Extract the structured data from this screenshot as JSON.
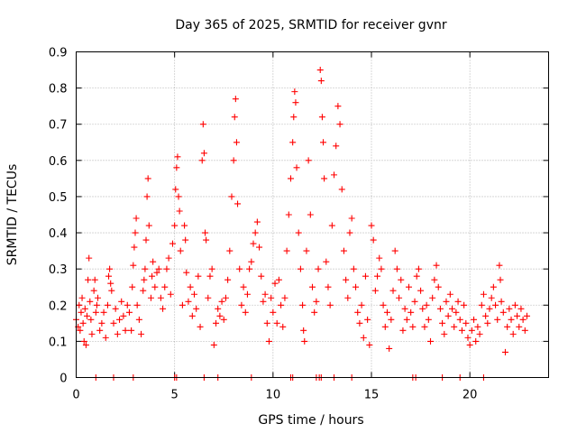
{
  "chart_data": {
    "type": "scatter",
    "title": "Day 365 of 2025, SRMTID for receiver gvnr",
    "xlabel": "GPS time / hours",
    "ylabel": "SRMTID / TECUs",
    "xlim": [
      0,
      24
    ],
    "ylim": [
      0,
      0.9
    ],
    "x_ticks": [
      0,
      5,
      10,
      15,
      20
    ],
    "y_ticks": [
      0,
      0.1,
      0.2,
      0.3,
      0.4,
      0.5,
      0.6,
      0.7,
      0.8,
      0.9
    ],
    "x_tick_labels": [
      "0",
      "5",
      "10",
      "15",
      "20"
    ],
    "y_tick_labels": [
      "0",
      "0.1",
      "0.2",
      "0.3",
      "0.4",
      "0.5",
      "0.6",
      "0.7",
      "0.8",
      "0.9"
    ],
    "grid": true,
    "legend": "none",
    "marker": "+",
    "series": [
      {
        "name": "SRMTID",
        "color": "#ff0000",
        "points": [
          [
            0.0,
            0.16
          ],
          [
            0.1,
            0.14
          ],
          [
            0.15,
            0.2
          ],
          [
            0.2,
            0.13
          ],
          [
            0.25,
            0.18
          ],
          [
            0.3,
            0.22
          ],
          [
            0.35,
            0.15
          ],
          [
            0.4,
            0.1
          ],
          [
            0.45,
            0.19
          ],
          [
            0.5,
            0.09
          ],
          [
            0.55,
            0.17
          ],
          [
            0.6,
            0.27
          ],
          [
            0.65,
            0.33
          ],
          [
            0.7,
            0.21
          ],
          [
            0.75,
            0.16
          ],
          [
            0.8,
            0.12
          ],
          [
            0.9,
            0.24
          ],
          [
            0.95,
            0.27
          ],
          [
            1.0,
            0.18
          ],
          [
            1.05,
            0.2
          ],
          [
            1.1,
            0.22
          ],
          [
            1.2,
            0.13
          ],
          [
            1.3,
            0.15
          ],
          [
            1.4,
            0.18
          ],
          [
            1.5,
            0.11
          ],
          [
            1.6,
            0.2
          ],
          [
            1.65,
            0.28
          ],
          [
            1.7,
            0.3
          ],
          [
            1.75,
            0.26
          ],
          [
            1.8,
            0.24
          ],
          [
            1.9,
            0.15
          ],
          [
            2.0,
            0.19
          ],
          [
            2.1,
            0.12
          ],
          [
            2.2,
            0.16
          ],
          [
            2.3,
            0.21
          ],
          [
            2.4,
            0.17
          ],
          [
            2.5,
            0.13
          ],
          [
            2.6,
            0.2
          ],
          [
            2.7,
            0.18
          ],
          [
            2.8,
            0.13
          ],
          [
            2.85,
            0.25
          ],
          [
            2.9,
            0.31
          ],
          [
            2.95,
            0.36
          ],
          [
            3.0,
            0.4
          ],
          [
            3.05,
            0.44
          ],
          [
            3.1,
            0.2
          ],
          [
            3.2,
            0.16
          ],
          [
            3.3,
            0.12
          ],
          [
            3.4,
            0.24
          ],
          [
            3.45,
            0.27
          ],
          [
            3.5,
            0.3
          ],
          [
            3.55,
            0.38
          ],
          [
            3.6,
            0.5
          ],
          [
            3.65,
            0.55
          ],
          [
            3.7,
            0.42
          ],
          [
            3.8,
            0.22
          ],
          [
            3.85,
            0.28
          ],
          [
            3.9,
            0.32
          ],
          [
            4.0,
            0.25
          ],
          [
            4.1,
            0.29
          ],
          [
            4.2,
            0.3
          ],
          [
            4.3,
            0.22
          ],
          [
            4.4,
            0.19
          ],
          [
            4.5,
            0.25
          ],
          [
            4.6,
            0.3
          ],
          [
            4.7,
            0.33
          ],
          [
            4.8,
            0.23
          ],
          [
            4.9,
            0.37
          ],
          [
            5.0,
            0.42
          ],
          [
            5.05,
            0.52
          ],
          [
            5.1,
            0.58
          ],
          [
            5.15,
            0.61
          ],
          [
            5.2,
            0.5
          ],
          [
            5.25,
            0.46
          ],
          [
            5.3,
            0.35
          ],
          [
            5.4,
            0.2
          ],
          [
            5.5,
            0.42
          ],
          [
            5.55,
            0.38
          ],
          [
            5.6,
            0.29
          ],
          [
            5.7,
            0.21
          ],
          [
            5.8,
            0.25
          ],
          [
            5.9,
            0.17
          ],
          [
            6.0,
            0.23
          ],
          [
            6.1,
            0.19
          ],
          [
            6.2,
            0.28
          ],
          [
            6.3,
            0.14
          ],
          [
            6.4,
            0.6
          ],
          [
            6.45,
            0.7
          ],
          [
            6.5,
            0.62
          ],
          [
            6.55,
            0.4
          ],
          [
            6.6,
            0.38
          ],
          [
            6.7,
            0.22
          ],
          [
            6.8,
            0.28
          ],
          [
            6.9,
            0.3
          ],
          [
            7.0,
            0.09
          ],
          [
            7.1,
            0.15
          ],
          [
            7.2,
            0.19
          ],
          [
            7.3,
            0.17
          ],
          [
            7.4,
            0.21
          ],
          [
            7.5,
            0.16
          ],
          [
            7.6,
            0.22
          ],
          [
            7.7,
            0.27
          ],
          [
            7.8,
            0.35
          ],
          [
            7.9,
            0.5
          ],
          [
            8.0,
            0.6
          ],
          [
            8.05,
            0.72
          ],
          [
            8.1,
            0.77
          ],
          [
            8.15,
            0.65
          ],
          [
            8.2,
            0.48
          ],
          [
            8.3,
            0.3
          ],
          [
            8.4,
            0.2
          ],
          [
            8.5,
            0.25
          ],
          [
            8.6,
            0.18
          ],
          [
            8.7,
            0.23
          ],
          [
            8.8,
            0.3
          ],
          [
            8.9,
            0.32
          ],
          [
            9.0,
            0.37
          ],
          [
            9.1,
            0.4
          ],
          [
            9.2,
            0.43
          ],
          [
            9.3,
            0.36
          ],
          [
            9.4,
            0.28
          ],
          [
            9.5,
            0.21
          ],
          [
            9.6,
            0.23
          ],
          [
            9.7,
            0.15
          ],
          [
            9.8,
            0.1
          ],
          [
            9.9,
            0.22
          ],
          [
            10.0,
            0.18
          ],
          [
            10.1,
            0.26
          ],
          [
            10.2,
            0.15
          ],
          [
            10.3,
            0.27
          ],
          [
            10.4,
            0.2
          ],
          [
            10.5,
            0.14
          ],
          [
            10.6,
            0.22
          ],
          [
            10.7,
            0.35
          ],
          [
            10.8,
            0.45
          ],
          [
            10.9,
            0.55
          ],
          [
            11.0,
            0.65
          ],
          [
            11.05,
            0.72
          ],
          [
            11.1,
            0.79
          ],
          [
            11.15,
            0.76
          ],
          [
            11.2,
            0.58
          ],
          [
            11.3,
            0.4
          ],
          [
            11.4,
            0.3
          ],
          [
            11.5,
            0.2
          ],
          [
            11.55,
            0.13
          ],
          [
            11.6,
            0.1
          ],
          [
            11.7,
            0.35
          ],
          [
            11.8,
            0.6
          ],
          [
            11.9,
            0.45
          ],
          [
            12.0,
            0.25
          ],
          [
            12.1,
            0.18
          ],
          [
            12.2,
            0.21
          ],
          [
            12.3,
            0.3
          ],
          [
            12.4,
            0.85
          ],
          [
            12.45,
            0.82
          ],
          [
            12.5,
            0.72
          ],
          [
            12.55,
            0.65
          ],
          [
            12.6,
            0.55
          ],
          [
            12.7,
            0.32
          ],
          [
            12.8,
            0.25
          ],
          [
            12.9,
            0.2
          ],
          [
            13.0,
            0.42
          ],
          [
            13.1,
            0.56
          ],
          [
            13.2,
            0.64
          ],
          [
            13.3,
            0.75
          ],
          [
            13.4,
            0.7
          ],
          [
            13.5,
            0.52
          ],
          [
            13.6,
            0.35
          ],
          [
            13.7,
            0.27
          ],
          [
            13.8,
            0.22
          ],
          [
            13.9,
            0.4
          ],
          [
            14.0,
            0.44
          ],
          [
            14.1,
            0.3
          ],
          [
            14.2,
            0.25
          ],
          [
            14.3,
            0.18
          ],
          [
            14.4,
            0.15
          ],
          [
            14.5,
            0.2
          ],
          [
            14.6,
            0.11
          ],
          [
            14.7,
            0.28
          ],
          [
            14.8,
            0.16
          ],
          [
            14.9,
            0.09
          ],
          [
            15.0,
            0.42
          ],
          [
            15.1,
            0.38
          ],
          [
            15.2,
            0.24
          ],
          [
            15.3,
            0.28
          ],
          [
            15.4,
            0.33
          ],
          [
            15.5,
            0.3
          ],
          [
            15.6,
            0.2
          ],
          [
            15.7,
            0.14
          ],
          [
            15.8,
            0.18
          ],
          [
            15.9,
            0.08
          ],
          [
            16.0,
            0.16
          ],
          [
            16.1,
            0.24
          ],
          [
            16.2,
            0.35
          ],
          [
            16.3,
            0.3
          ],
          [
            16.4,
            0.22
          ],
          [
            16.5,
            0.27
          ],
          [
            16.6,
            0.13
          ],
          [
            16.7,
            0.19
          ],
          [
            16.8,
            0.16
          ],
          [
            16.9,
            0.25
          ],
          [
            17.0,
            0.18
          ],
          [
            17.1,
            0.14
          ],
          [
            17.2,
            0.21
          ],
          [
            17.3,
            0.28
          ],
          [
            17.4,
            0.3
          ],
          [
            17.5,
            0.24
          ],
          [
            17.6,
            0.19
          ],
          [
            17.7,
            0.14
          ],
          [
            17.8,
            0.2
          ],
          [
            17.9,
            0.16
          ],
          [
            18.0,
            0.1
          ],
          [
            18.1,
            0.22
          ],
          [
            18.2,
            0.27
          ],
          [
            18.3,
            0.31
          ],
          [
            18.4,
            0.25
          ],
          [
            18.5,
            0.19
          ],
          [
            18.6,
            0.15
          ],
          [
            18.7,
            0.12
          ],
          [
            18.8,
            0.21
          ],
          [
            18.9,
            0.17
          ],
          [
            19.0,
            0.23
          ],
          [
            19.1,
            0.19
          ],
          [
            19.2,
            0.14
          ],
          [
            19.3,
            0.18
          ],
          [
            19.4,
            0.21
          ],
          [
            19.5,
            0.16
          ],
          [
            19.6,
            0.13
          ],
          [
            19.7,
            0.2
          ],
          [
            19.8,
            0.15
          ],
          [
            19.9,
            0.11
          ],
          [
            20.0,
            0.09
          ],
          [
            20.1,
            0.13
          ],
          [
            20.2,
            0.16
          ],
          [
            20.3,
            0.1
          ],
          [
            20.4,
            0.14
          ],
          [
            20.5,
            0.12
          ],
          [
            20.6,
            0.2
          ],
          [
            20.7,
            0.23
          ],
          [
            20.8,
            0.17
          ],
          [
            20.9,
            0.15
          ],
          [
            21.0,
            0.19
          ],
          [
            21.1,
            0.22
          ],
          [
            21.2,
            0.25
          ],
          [
            21.3,
            0.2
          ],
          [
            21.4,
            0.16
          ],
          [
            21.5,
            0.31
          ],
          [
            21.55,
            0.27
          ],
          [
            21.6,
            0.21
          ],
          [
            21.7,
            0.18
          ],
          [
            21.8,
            0.07
          ],
          [
            21.9,
            0.14
          ],
          [
            22.0,
            0.19
          ],
          [
            22.1,
            0.16
          ],
          [
            22.2,
            0.12
          ],
          [
            22.3,
            0.2
          ],
          [
            22.4,
            0.17
          ],
          [
            22.5,
            0.14
          ],
          [
            22.6,
            0.19
          ],
          [
            22.7,
            0.16
          ],
          [
            22.8,
            0.13
          ],
          [
            22.9,
            0.17
          ],
          [
            1.0,
            0.0
          ],
          [
            1.9,
            0.0
          ],
          [
            2.9,
            0.0
          ],
          [
            5.0,
            0.0
          ],
          [
            5.1,
            0.0
          ],
          [
            6.5,
            0.0
          ],
          [
            7.2,
            0.0
          ],
          [
            8.9,
            0.0
          ],
          [
            10.9,
            0.0
          ],
          [
            11.0,
            0.0
          ],
          [
            12.2,
            0.0
          ],
          [
            12.35,
            0.0
          ],
          [
            12.45,
            0.0
          ],
          [
            13.1,
            0.0
          ],
          [
            14.0,
            0.0
          ],
          [
            17.1,
            0.0
          ],
          [
            17.25,
            0.0
          ],
          [
            18.6,
            0.0
          ],
          [
            19.5,
            0.0
          ],
          [
            20.7,
            0.0
          ]
        ]
      }
    ]
  }
}
